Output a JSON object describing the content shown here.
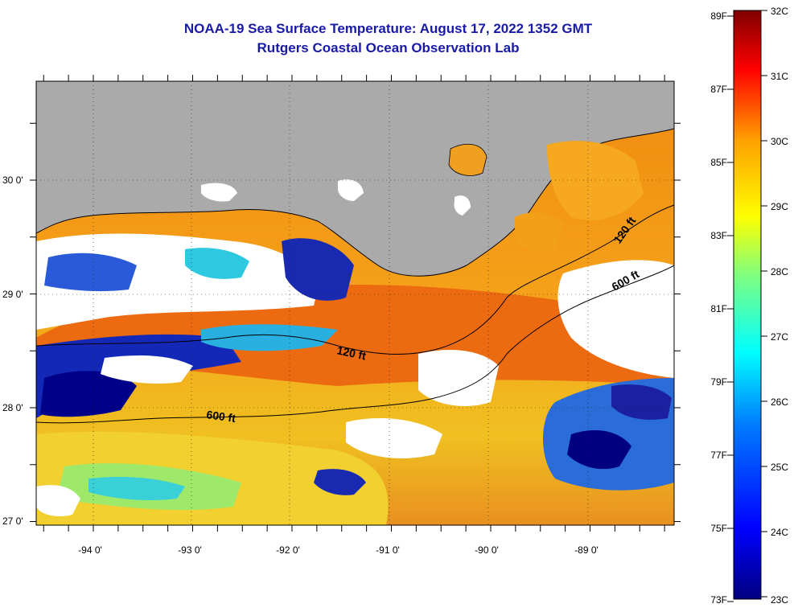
{
  "title": {
    "line1": "NOAA-19 Sea Surface Temperature:  August 17, 2022 1352 GMT",
    "line2": "Rutgers Coastal Ocean Observation Lab"
  },
  "map": {
    "longitude_labels": [
      "-94 0'",
      "-93 0'",
      "-92 0'",
      "-91 0'",
      "-90 0'",
      "-89 0'"
    ],
    "latitude_labels": [
      "30 0'",
      "29 0'",
      "28 0'",
      "27 0'"
    ],
    "contour_labels": [
      "120 ft",
      "600 ft",
      "120 ft",
      "600 ft"
    ],
    "land_color": "#aaaaaa",
    "cloud_color": "#ffffff"
  },
  "colorbar": {
    "fahrenheit_labels": [
      "89F",
      "87F",
      "85F",
      "83F",
      "81F",
      "79F",
      "77F",
      "75F",
      "73F"
    ],
    "celsius_labels": [
      "32C",
      "31C",
      "30C",
      "29C",
      "28C",
      "27C",
      "26C",
      "25C",
      "24C",
      "23C"
    ],
    "range_celsius": [
      23,
      32
    ],
    "colors": [
      "#00007f",
      "#0000ff",
      "#007fff",
      "#00ffff",
      "#7fff7f",
      "#ffff00",
      "#ff7f00",
      "#ff0000",
      "#7f0000"
    ]
  }
}
